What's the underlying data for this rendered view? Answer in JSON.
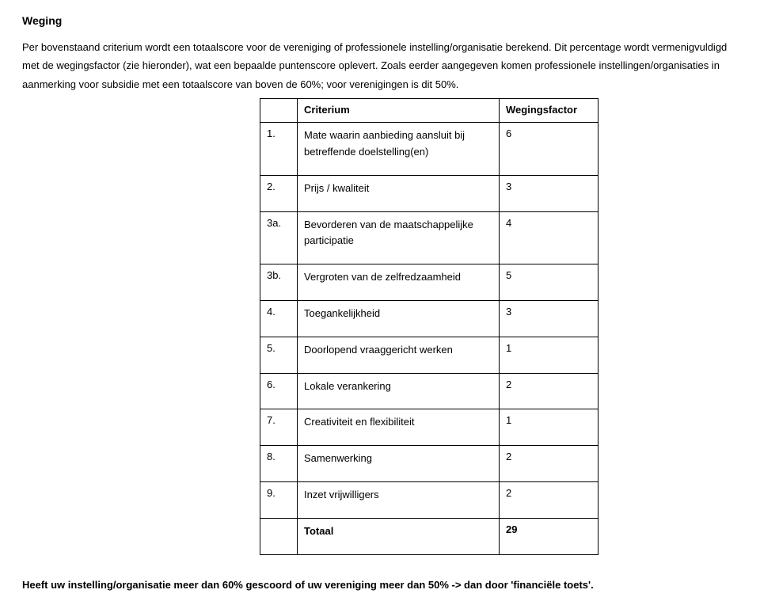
{
  "title": "Weging",
  "paragraph": "Per bovenstaand criterium wordt een totaalscore voor de vereniging of professionele instelling/organisatie berekend. Dit percentage wordt vermenigvuldigd met de wegingsfactor (zie hieronder), wat een bepaalde puntenscore oplevert. Zoals eerder aangegeven komen professionele instellingen/organisaties in aanmerking voor subsidie met een totaalscore van boven de 60%; voor verenigingen is dit 50%.",
  "table": {
    "header": {
      "num": "",
      "criterium": "Criterium",
      "factor": "Wegingsfactor"
    },
    "rows": [
      {
        "num": "1.",
        "criterium": "Mate waarin aanbieding aansluit bij betreffende doelstelling(en)",
        "factor": "6"
      },
      {
        "num": "2.",
        "criterium": "Prijs / kwaliteit",
        "factor": "3"
      },
      {
        "num": "3a.",
        "criterium": "Bevorderen van de maatschappelijke participatie",
        "factor": "4"
      },
      {
        "num": "3b.",
        "criterium": "Vergroten van de zelfredzaamheid",
        "factor": "5"
      },
      {
        "num": "4.",
        "criterium": "Toegankelijkheid",
        "factor": "3"
      },
      {
        "num": "5.",
        "criterium": "Doorlopend vraaggericht werken",
        "factor": "1"
      },
      {
        "num": "6.",
        "criterium": "Lokale verankering",
        "factor": "2"
      },
      {
        "num": "7.",
        "criterium": "Creativiteit en flexibiliteit",
        "factor": "1"
      },
      {
        "num": "8.",
        "criterium": "Samenwerking",
        "factor": "2"
      },
      {
        "num": "9.",
        "criterium": "Inzet vrijwilligers",
        "factor": "2"
      }
    ],
    "total": {
      "num": "",
      "criterium": "Totaal",
      "factor": "29"
    }
  },
  "footer": "Heeft uw instelling/organisatie meer dan 60% gescoord of uw vereniging meer dan 50% -> dan door 'financiële toets'."
}
